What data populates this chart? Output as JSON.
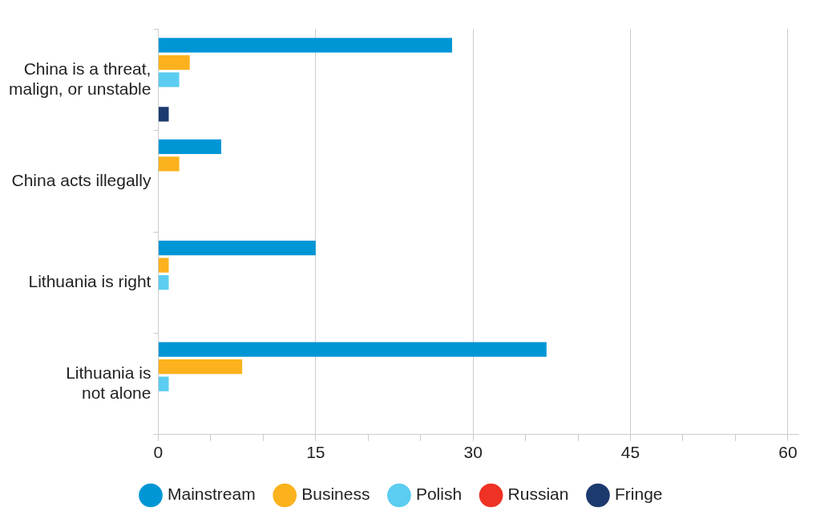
{
  "chart_data": {
    "type": "bar",
    "orientation": "horizontal",
    "categories": [
      "China is a threat, malign, or unstable",
      "China acts illegally",
      "Lithuania is right",
      "Lithuania is not alone"
    ],
    "series": [
      {
        "name": "Mainstream",
        "color": "#0096d6",
        "values": [
          28,
          6,
          15,
          37
        ]
      },
      {
        "name": "Business",
        "color": "#fbb21d",
        "values": [
          3,
          2,
          1,
          8
        ]
      },
      {
        "name": "Polish",
        "color": "#5bcdf0",
        "values": [
          2,
          0,
          1,
          1
        ]
      },
      {
        "name": "Russian",
        "color": "#ee3224",
        "values": [
          0,
          0,
          0,
          0
        ]
      },
      {
        "name": "Fringe",
        "color": "#1d3a6e",
        "values": [
          1,
          0,
          0,
          0
        ]
      }
    ],
    "xlim": [
      0,
      61
    ],
    "xticks": [
      0,
      {
        "value": 5,
        "label": null
      },
      {
        "value": 10,
        "label": null
      },
      15,
      {
        "value": 20,
        "label": null
      },
      {
        "value": 25,
        "label": null
      },
      30,
      {
        "value": 35,
        "label": null
      },
      {
        "value": 40,
        "label": null
      },
      45,
      {
        "value": 50,
        "label": null
      },
      {
        "value": 55,
        "label": null
      },
      60
    ],
    "grid": "x",
    "legend": "bottom"
  }
}
